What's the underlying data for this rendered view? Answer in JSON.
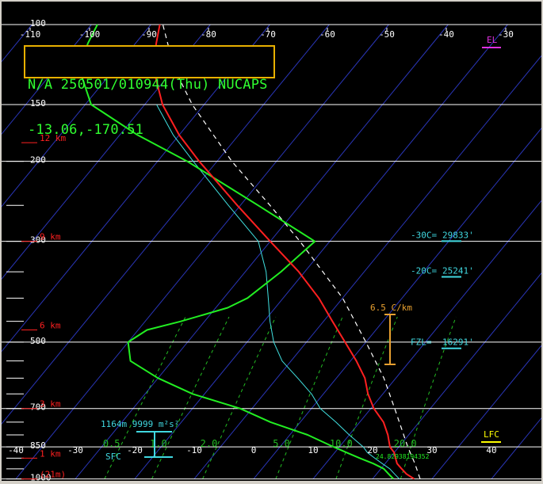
{
  "header": {
    "line1": "N/A 250501/010944(Thu) NUCAPS",
    "line2": "-13.06,-170.51"
  },
  "colors": {
    "background": "#000000",
    "isobar": "#ffffff",
    "isotherm": "#2a36b8",
    "mixing_ratio": "#22bb22",
    "temperature": "#ff2020",
    "dewpoint": "#22ee22",
    "wetbulb": "#40e0e0",
    "parcel": "#ffffff",
    "height_labels": "#ff2020",
    "cyan_text": "#40d8e0",
    "header_border": "#e8b000",
    "lapse_rate": "#e8a030",
    "lfc": "#ffff00",
    "el": "#e030e0"
  },
  "chart_data": {
    "type": "line",
    "title": "",
    "skewt": true,
    "pressure_levels": [
      100,
      150,
      200,
      300,
      500,
      700,
      850,
      1000
    ],
    "pressure_labels": [
      "100",
      "150",
      "200",
      "300",
      "500",
      "700",
      "850",
      "1000"
    ],
    "top_temp_ticks": [
      -110,
      -100,
      -90,
      -80,
      -70,
      -60,
      -50,
      -40,
      -30
    ],
    "top_temp_labels": [
      "-110",
      "-100",
      "-90",
      "-80",
      "-70",
      "-60",
      "-50",
      "-40",
      "-30"
    ],
    "bottom_temp_ticks": [
      -40,
      -30,
      -20,
      -10,
      0,
      10,
      20,
      30,
      40
    ],
    "bottom_temp_labels": [
      "-40",
      "-30",
      "-20",
      "-10",
      "0",
      "10",
      "20",
      "30",
      "40"
    ],
    "height_labels": [
      {
        "text": "12 km",
        "p": 182
      },
      {
        "text": "9 km",
        "p": 300
      },
      {
        "text": "6 km",
        "p": 470
      },
      {
        "text": "3 km",
        "p": 700
      },
      {
        "text": "1 km",
        "p": 900
      },
      {
        "text": "(21m)",
        "p": 1000
      }
    ],
    "mixing_ratio_labels": [
      "0.5",
      "1.0",
      "2.0",
      "5.0",
      "10.0",
      "20.0"
    ],
    "mixing_ratio_values": [
      0.5,
      1.0,
      2.0,
      5.0,
      10.0,
      20.0
    ],
    "series": [
      {
        "name": "Temperature",
        "p": [
          1000,
          975,
          950,
          925,
          900,
          875,
          850,
          800,
          750,
          700,
          650,
          600,
          550,
          500,
          450,
          400,
          350,
          300,
          250,
          200,
          175,
          150,
          125,
          110,
          100
        ],
        "t": [
          27.0,
          25.0,
          23.5,
          22.0,
          21.0,
          20.0,
          18.5,
          16.5,
          14.0,
          10.5,
          7.5,
          4.8,
          1.0,
          -3.5,
          -8.5,
          -14.0,
          -21.0,
          -30.0,
          -40.5,
          -53.0,
          -60.0,
          -67.0,
          -73.5,
          -76.5,
          -78.5
        ]
      },
      {
        "name": "Dewpoint",
        "p": [
          1000,
          975,
          950,
          925,
          900,
          875,
          850,
          800,
          750,
          700,
          650,
          600,
          550,
          500,
          470,
          450,
          420,
          400,
          350,
          300,
          250,
          200,
          175,
          150,
          125,
          110,
          100
        ],
        "t": [
          23.5,
          22.0,
          20.5,
          18.0,
          15.0,
          12.0,
          9.0,
          3.0,
          -5.0,
          -12.0,
          -22.0,
          -30.0,
          -37.0,
          -40.0,
          -38.5,
          -34.0,
          -28.0,
          -26.0,
          -24.0,
          -22.5,
          -37.0,
          -55.0,
          -67.0,
          -79.0,
          -86.0,
          -88.0,
          -89.0
        ]
      },
      {
        "name": "Wet-bulb",
        "p": [
          1000,
          975,
          950,
          925,
          900,
          875,
          850,
          800,
          750,
          700,
          650,
          600,
          550,
          500,
          450,
          400,
          350,
          300,
          250,
          200,
          175,
          150
        ],
        "t": [
          24.5,
          23.0,
          21.5,
          19.5,
          17.5,
          15.5,
          14.0,
          10.0,
          6.0,
          1.5,
          -2.0,
          -6.5,
          -11.5,
          -15.5,
          -19.0,
          -22.5,
          -26.5,
          -32.0,
          -42.0,
          -54.0,
          -61.0,
          -68.0
        ]
      }
    ],
    "parcel_path": {
      "p": [
        1000,
        925,
        850,
        700,
        600,
        500,
        400,
        300,
        250,
        200,
        150,
        125,
        100
      ],
      "t": [
        28.0,
        25.0,
        21.5,
        14.0,
        8.0,
        0.0,
        -10.0,
        -25.0,
        -35.0,
        -47.5,
        -62.0,
        -70.0,
        -78.0
      ]
    },
    "annotations": {
      "cape": "1164m 9999 m²s²",
      "surface": "SFC",
      "lapse_rate": "6.5 C/km",
      "levels": [
        {
          "label": "-30C=",
          "value": "29833'",
          "p": 302
        },
        {
          "label": "-20C=",
          "value": "25241'",
          "p": 362
        },
        {
          "label": "FZL=",
          "value": "16291'",
          "p": 520
        }
      ],
      "lfc": "LFC",
      "el": "EL",
      "surface_values": "24.82938194352"
    }
  }
}
